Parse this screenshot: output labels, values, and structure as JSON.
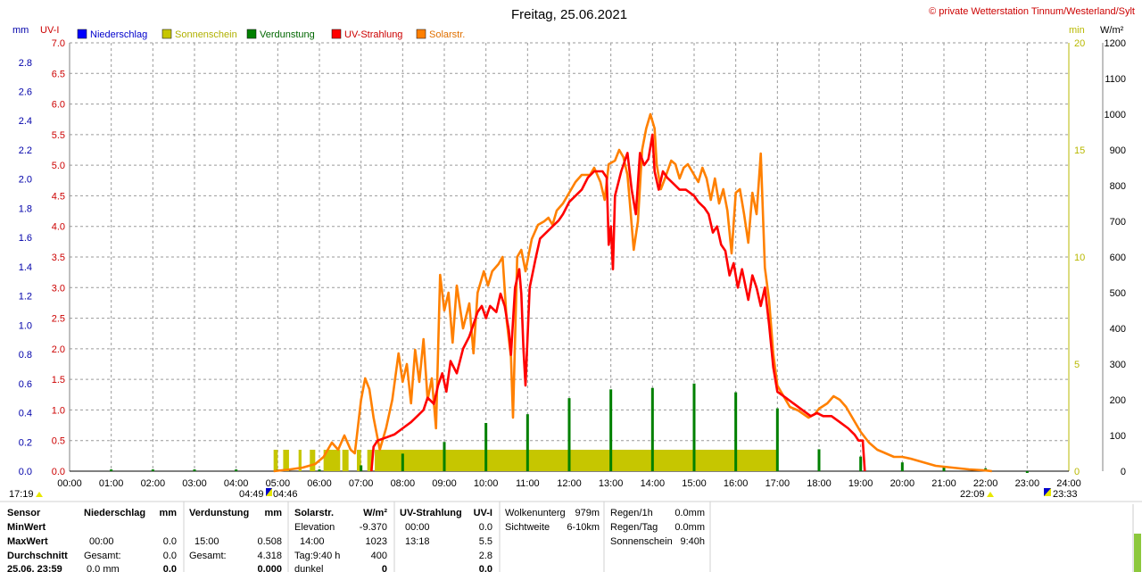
{
  "chart_data": {
    "type": "line",
    "title": "Freitag, 25.06.2021",
    "copyright": "© private Wetterstation Tinnum/Westerland/Sylt",
    "units": {
      "mm": "mm",
      "uvi": "UV-I",
      "min": "min",
      "wm2": "W/m²"
    },
    "legend": [
      {
        "label": "Niederschlag",
        "color": "#0000ff"
      },
      {
        "label": "Sonnenschein",
        "color": "#c6c600"
      },
      {
        "label": "Verdunstung",
        "color": "#008000"
      },
      {
        "label": "UV-Strahlung",
        "color": "#ff0000"
      },
      {
        "label": "Solarstr.",
        "color": "#ff8000"
      }
    ],
    "x_ticks": [
      "00:00",
      "01:00",
      "02:00",
      "03:00",
      "04:00",
      "05:00",
      "06:00",
      "07:00",
      "08:00",
      "09:00",
      "10:00",
      "11:00",
      "12:00",
      "13:00",
      "14:00",
      "15:00",
      "16:00",
      "17:00",
      "18:00",
      "19:00",
      "20:00",
      "21:00",
      "22:00",
      "23:00",
      "24:00"
    ],
    "mm_ticks": [
      "0.0",
      "0.2",
      "0.4",
      "0.6",
      "0.8",
      "1.0",
      "1.2",
      "1.4",
      "1.6",
      "1.8",
      "2.0",
      "2.2",
      "2.4",
      "2.6",
      "2.8"
    ],
    "uvi_ticks": [
      "0.0",
      "0.5",
      "1.0",
      "1.5",
      "2.0",
      "2.5",
      "3.0",
      "3.5",
      "4.0",
      "4.5",
      "5.0",
      "5.5",
      "6.0",
      "6.5",
      "7.0"
    ],
    "min_ticks": [
      "0",
      "5",
      "10",
      "15",
      "20"
    ],
    "wm2_ticks": [
      "0",
      "100",
      "200",
      "300",
      "400",
      "500",
      "600",
      "700",
      "800",
      "900",
      "1000",
      "1100",
      "1200"
    ],
    "ranges": {
      "mm": [
        0,
        2.933
      ],
      "uvi": [
        0,
        7
      ],
      "min": [
        0,
        20
      ],
      "wm2": [
        0,
        1200
      ],
      "x_hours": [
        0,
        24
      ]
    },
    "grid": true,
    "sun_markers": {
      "left": "17:19",
      "rise1": "04:49",
      "rise2": "04:46",
      "set": "22:09",
      "right": "23:33"
    },
    "sunshine_blocks_hours": [
      [
        4.9,
        5.0
      ],
      [
        5.13,
        5.27
      ],
      [
        5.5,
        5.57
      ],
      [
        5.77,
        5.9
      ],
      [
        6.1,
        6.5
      ],
      [
        6.55,
        6.7
      ],
      [
        6.9,
        7.0
      ],
      [
        7.15,
        7.28
      ],
      [
        7.33,
        17.0
      ]
    ],
    "sunshine_level_min": 1.0,
    "evaporation_spikes": [
      {
        "t": 1.0,
        "v": 0.012
      },
      {
        "t": 2.0,
        "v": 0.012
      },
      {
        "t": 3.0,
        "v": 0.012
      },
      {
        "t": 4.0,
        "v": 0.012
      },
      {
        "t": 5.0,
        "v": 0.012
      },
      {
        "t": 6.0,
        "v": 0.012
      },
      {
        "t": 7.0,
        "v": 0.04
      },
      {
        "t": 8.0,
        "v": 0.12
      },
      {
        "t": 9.0,
        "v": 0.2
      },
      {
        "t": 10.0,
        "v": 0.33
      },
      {
        "t": 11.0,
        "v": 0.39
      },
      {
        "t": 12.0,
        "v": 0.5
      },
      {
        "t": 13.0,
        "v": 0.56
      },
      {
        "t": 14.0,
        "v": 0.57
      },
      {
        "t": 15.0,
        "v": 0.6
      },
      {
        "t": 16.0,
        "v": 0.54
      },
      {
        "t": 17.0,
        "v": 0.43
      },
      {
        "t": 18.0,
        "v": 0.15
      },
      {
        "t": 19.0,
        "v": 0.1
      },
      {
        "t": 20.0,
        "v": 0.06
      },
      {
        "t": 21.0,
        "v": 0.03
      },
      {
        "t": 22.0,
        "v": 0.02
      },
      {
        "t": 23.0,
        "v": 0.0
      }
    ],
    "series": [
      {
        "name": "Solarstr.",
        "color": "#ff8000",
        "axis": "wm2",
        "points": [
          [
            4.9,
            0
          ],
          [
            5.3,
            5
          ],
          [
            5.6,
            10
          ],
          [
            5.9,
            20
          ],
          [
            6.1,
            40
          ],
          [
            6.3,
            80
          ],
          [
            6.45,
            60
          ],
          [
            6.6,
            100
          ],
          [
            6.75,
            60
          ],
          [
            6.85,
            50
          ],
          [
            7.0,
            200
          ],
          [
            7.1,
            260
          ],
          [
            7.2,
            230
          ],
          [
            7.3,
            150
          ],
          [
            7.45,
            60
          ],
          [
            7.6,
            120
          ],
          [
            7.75,
            200
          ],
          [
            7.9,
            330
          ],
          [
            8.0,
            250
          ],
          [
            8.1,
            300
          ],
          [
            8.2,
            190
          ],
          [
            8.3,
            340
          ],
          [
            8.4,
            250
          ],
          [
            8.5,
            370
          ],
          [
            8.6,
            200
          ],
          [
            8.7,
            260
          ],
          [
            8.8,
            120
          ],
          [
            8.9,
            550
          ],
          [
            9.0,
            450
          ],
          [
            9.1,
            500
          ],
          [
            9.2,
            360
          ],
          [
            9.3,
            520
          ],
          [
            9.45,
            400
          ],
          [
            9.6,
            470
          ],
          [
            9.7,
            330
          ],
          [
            9.8,
            500
          ],
          [
            9.95,
            560
          ],
          [
            10.05,
            520
          ],
          [
            10.15,
            560
          ],
          [
            10.3,
            580
          ],
          [
            10.4,
            600
          ],
          [
            10.5,
            420
          ],
          [
            10.6,
            320
          ],
          [
            10.65,
            150
          ],
          [
            10.75,
            600
          ],
          [
            10.85,
            620
          ],
          [
            10.95,
            560
          ],
          [
            11.1,
            650
          ],
          [
            11.25,
            690
          ],
          [
            11.4,
            700
          ],
          [
            11.5,
            710
          ],
          [
            11.6,
            690
          ],
          [
            11.7,
            730
          ],
          [
            11.85,
            750
          ],
          [
            12.0,
            780
          ],
          [
            12.15,
            810
          ],
          [
            12.3,
            830
          ],
          [
            12.5,
            830
          ],
          [
            12.6,
            850
          ],
          [
            12.75,
            810
          ],
          [
            12.85,
            760
          ],
          [
            12.95,
            860
          ],
          [
            13.1,
            870
          ],
          [
            13.2,
            900
          ],
          [
            13.3,
            880
          ],
          [
            13.4,
            830
          ],
          [
            13.45,
            760
          ],
          [
            13.55,
            620
          ],
          [
            13.65,
            700
          ],
          [
            13.75,
            900
          ],
          [
            13.85,
            960
          ],
          [
            13.95,
            1000
          ],
          [
            14.05,
            960
          ],
          [
            14.1,
            860
          ],
          [
            14.2,
            790
          ],
          [
            14.3,
            820
          ],
          [
            14.45,
            870
          ],
          [
            14.55,
            860
          ],
          [
            14.65,
            820
          ],
          [
            14.75,
            850
          ],
          [
            14.85,
            860
          ],
          [
            15.0,
            830
          ],
          [
            15.1,
            810
          ],
          [
            15.2,
            850
          ],
          [
            15.3,
            820
          ],
          [
            15.4,
            760
          ],
          [
            15.5,
            820
          ],
          [
            15.6,
            750
          ],
          [
            15.7,
            790
          ],
          [
            15.8,
            730
          ],
          [
            15.9,
            610
          ],
          [
            16.0,
            780
          ],
          [
            16.1,
            790
          ],
          [
            16.2,
            720
          ],
          [
            16.3,
            640
          ],
          [
            16.4,
            780
          ],
          [
            16.5,
            720
          ],
          [
            16.6,
            890
          ],
          [
            16.7,
            570
          ],
          [
            16.8,
            480
          ],
          [
            16.9,
            330
          ],
          [
            17.0,
            240
          ],
          [
            17.3,
            180
          ],
          [
            17.5,
            170
          ],
          [
            17.75,
            150
          ],
          [
            17.9,
            160
          ],
          [
            18.0,
            175
          ],
          [
            18.2,
            190
          ],
          [
            18.35,
            210
          ],
          [
            18.5,
            200
          ],
          [
            18.65,
            180
          ],
          [
            18.8,
            150
          ],
          [
            19.0,
            110
          ],
          [
            19.2,
            80
          ],
          [
            19.4,
            60
          ],
          [
            19.6,
            50
          ],
          [
            19.8,
            40
          ],
          [
            20.0,
            40
          ],
          [
            20.2,
            35
          ],
          [
            20.5,
            25
          ],
          [
            20.8,
            15
          ],
          [
            21.2,
            10
          ],
          [
            21.6,
            5
          ],
          [
            22.0,
            2
          ],
          [
            22.15,
            0
          ]
        ]
      },
      {
        "name": "UV-Strahlung",
        "color": "#ff0000",
        "axis": "uvi",
        "points": [
          [
            7.25,
            0.0
          ],
          [
            7.3,
            0.4
          ],
          [
            7.4,
            0.5
          ],
          [
            7.6,
            0.55
          ],
          [
            7.8,
            0.6
          ],
          [
            8.0,
            0.7
          ],
          [
            8.2,
            0.8
          ],
          [
            8.35,
            0.9
          ],
          [
            8.5,
            1.0
          ],
          [
            8.6,
            1.2
          ],
          [
            8.75,
            1.1
          ],
          [
            8.85,
            1.4
          ],
          [
            8.95,
            1.6
          ],
          [
            9.05,
            1.3
          ],
          [
            9.15,
            1.8
          ],
          [
            9.3,
            1.6
          ],
          [
            9.45,
            2.0
          ],
          [
            9.6,
            2.2
          ],
          [
            9.7,
            2.4
          ],
          [
            9.8,
            2.6
          ],
          [
            9.9,
            2.7
          ],
          [
            10.0,
            2.5
          ],
          [
            10.1,
            2.7
          ],
          [
            10.25,
            2.6
          ],
          [
            10.35,
            2.9
          ],
          [
            10.45,
            2.7
          ],
          [
            10.55,
            2.3
          ],
          [
            10.6,
            1.9
          ],
          [
            10.7,
            3.0
          ],
          [
            10.8,
            3.3
          ],
          [
            10.85,
            2.9
          ],
          [
            10.9,
            2.0
          ],
          [
            10.95,
            1.4
          ],
          [
            11.05,
            3.0
          ],
          [
            11.2,
            3.5
          ],
          [
            11.3,
            3.8
          ],
          [
            11.45,
            3.9
          ],
          [
            11.6,
            4.0
          ],
          [
            11.75,
            4.1
          ],
          [
            11.85,
            4.2
          ],
          [
            12.0,
            4.4
          ],
          [
            12.15,
            4.5
          ],
          [
            12.3,
            4.6
          ],
          [
            12.45,
            4.8
          ],
          [
            12.6,
            4.9
          ],
          [
            12.8,
            4.9
          ],
          [
            12.9,
            4.8
          ],
          [
            12.95,
            3.7
          ],
          [
            13.0,
            4.0
          ],
          [
            13.05,
            3.3
          ],
          [
            13.1,
            4.5
          ],
          [
            13.25,
            4.9
          ],
          [
            13.4,
            5.2
          ],
          [
            13.5,
            4.6
          ],
          [
            13.6,
            4.2
          ],
          [
            13.7,
            5.2
          ],
          [
            13.8,
            5.0
          ],
          [
            13.9,
            5.1
          ],
          [
            14.0,
            5.5
          ],
          [
            14.05,
            4.9
          ],
          [
            14.15,
            4.6
          ],
          [
            14.25,
            4.9
          ],
          [
            14.35,
            4.8
          ],
          [
            14.5,
            4.7
          ],
          [
            14.65,
            4.6
          ],
          [
            14.8,
            4.6
          ],
          [
            15.0,
            4.5
          ],
          [
            15.1,
            4.4
          ],
          [
            15.25,
            4.3
          ],
          [
            15.35,
            4.2
          ],
          [
            15.45,
            3.9
          ],
          [
            15.55,
            4.0
          ],
          [
            15.65,
            3.7
          ],
          [
            15.75,
            3.6
          ],
          [
            15.85,
            3.2
          ],
          [
            15.95,
            3.4
          ],
          [
            16.05,
            3.0
          ],
          [
            16.15,
            3.3
          ],
          [
            16.3,
            2.8
          ],
          [
            16.4,
            3.2
          ],
          [
            16.5,
            3.0
          ],
          [
            16.6,
            2.7
          ],
          [
            16.7,
            3.0
          ],
          [
            16.8,
            2.4
          ],
          [
            16.9,
            1.7
          ],
          [
            17.0,
            1.3
          ],
          [
            17.2,
            1.2
          ],
          [
            17.4,
            1.1
          ],
          [
            17.6,
            1.0
          ],
          [
            17.8,
            0.9
          ],
          [
            17.95,
            0.95
          ],
          [
            18.1,
            0.9
          ],
          [
            18.3,
            0.9
          ],
          [
            18.5,
            0.8
          ],
          [
            18.7,
            0.7
          ],
          [
            18.85,
            0.6
          ],
          [
            18.95,
            0.5
          ],
          [
            19.05,
            0.5
          ],
          [
            19.1,
            0.0
          ]
        ]
      }
    ]
  },
  "stats": {
    "col1": {
      "rows": [
        "Sensor",
        "MinWert",
        "MaxWert",
        "Durchschnitt",
        "25.06. 23:59"
      ]
    },
    "col_precip": {
      "header": "Niederschlag",
      "unit": "mm",
      "rows": [
        [
          "",
          ""
        ],
        [
          "00:00",
          "0.0"
        ],
        [
          "Gesamt:",
          "0.0"
        ],
        [
          "0.0 mm",
          "0.0"
        ]
      ]
    },
    "col_evap": {
      "header": "Verdunstung",
      "unit": "mm",
      "rows": [
        [
          "",
          ""
        ],
        [
          "15:00",
          "0.508"
        ],
        [
          "Gesamt:",
          "4.318"
        ],
        [
          "",
          "0.000"
        ]
      ]
    },
    "col_solar": {
      "header": "Solarstr.",
      "unit": "W/m²",
      "rows": [
        [
          "Elevation",
          "-9.370"
        ],
        [
          "14:00",
          "1023"
        ],
        [
          "Tag:9:40 h",
          "400"
        ],
        [
          "dunkel",
          "0"
        ]
      ]
    },
    "col_uv": {
      "header": "UV-Strahlung",
      "unit": "UV-I",
      "rows": [
        [
          "00:00",
          "0.0"
        ],
        [
          "13:18",
          "5.5"
        ],
        [
          "",
          "2.8"
        ],
        [
          "",
          "0.0"
        ]
      ]
    },
    "col_cloud": {
      "rows": [
        [
          "Wolkenunterg",
          "979m"
        ],
        [
          "Sichtweite",
          "6-10km"
        ]
      ]
    },
    "col_rain": {
      "rows": [
        [
          "Regen/1h",
          "0.0mm"
        ],
        [
          "Regen/Tag",
          "0.0mm"
        ],
        [
          "Sonnenschein",
          "9:40h"
        ]
      ]
    }
  }
}
